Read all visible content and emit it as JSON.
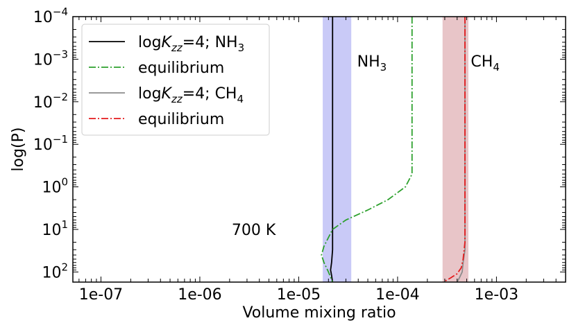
{
  "chart_data": {
    "type": "line",
    "xlabel": "Volume mixing ratio",
    "ylabel": "log(P)",
    "x_scale": "log",
    "y_scale": "log",
    "y_inverted": true,
    "xlim": [
      5.2e-08,
      0.005
    ],
    "ylim": [
      173,
      0.0001
    ],
    "x_ticks": [
      {
        "value": 1e-07,
        "label": "1e-07"
      },
      {
        "value": 1e-06,
        "label": "1e-06"
      },
      {
        "value": 1e-05,
        "label": "1e-05"
      },
      {
        "value": 0.0001,
        "label": "1e-04"
      },
      {
        "value": 0.001,
        "label": "1e-03"
      }
    ],
    "y_ticks": [
      {
        "value": 0.0001,
        "base": "10",
        "exp": "−4"
      },
      {
        "value": 0.001,
        "base": "10",
        "exp": "−3"
      },
      {
        "value": 0.01,
        "base": "10",
        "exp": "−2"
      },
      {
        "value": 0.1,
        "base": "10",
        "exp": "−1"
      },
      {
        "value": 1,
        "base": "10",
        "exp": "0"
      },
      {
        "value": 10,
        "base": "10",
        "exp": "1"
      },
      {
        "value": 100,
        "base": "10",
        "exp": "2"
      }
    ],
    "bands": [
      {
        "x": [
          1.75e-05,
          3.4e-05
        ],
        "color": "#c9caf7"
      },
      {
        "x": [
          0.000285,
          0.00052
        ],
        "color": "#e8c5c8"
      }
    ],
    "annotations": [
      {
        "text": "700 K",
        "x": 2.1e-06,
        "y": 10
      },
      {
        "text": "NH",
        "sub": "3",
        "x": 3.9e-05,
        "y": 0.0011
      },
      {
        "text": "CH",
        "sub": "4",
        "x": 0.00055,
        "y": 0.0011
      }
    ],
    "series": [
      {
        "legend": {
          "pre": "log",
          "italic": "K",
          "sub": "zz",
          "post": "=4; NH",
          "post_sub": "3"
        },
        "color": "#000000",
        "dash": "",
        "width": 1.8,
        "points": [
          [
            2.2e-05,
            0.0001
          ],
          [
            2.2e-05,
            30
          ],
          [
            2.15e-05,
            60
          ],
          [
            2.1e-05,
            90
          ],
          [
            2.15e-05,
            120
          ],
          [
            2.2e-05,
            173
          ]
        ]
      },
      {
        "legend": {
          "pre": "equilibrium"
        },
        "color": "#2ca02c",
        "dash": "10,3,2,3",
        "width": 1.8,
        "points": [
          [
            0.00014,
            0.0001
          ],
          [
            0.00014,
            0.5
          ],
          [
            0.00012,
            1.0
          ],
          [
            8e-05,
            2.0
          ],
          [
            5e-05,
            3.5
          ],
          [
            3e-05,
            6
          ],
          [
            2.2e-05,
            10
          ],
          [
            1.8e-05,
            25
          ],
          [
            1.7e-05,
            40
          ],
          [
            1.8e-05,
            60
          ],
          [
            2e-05,
            100
          ],
          [
            2.2e-05,
            173
          ]
        ]
      },
      {
        "legend": {
          "pre": "log",
          "italic": "K",
          "sub": "zz",
          "post": "=4; CH",
          "post_sub": "4"
        },
        "color": "#8c8c8c",
        "dash": "",
        "width": 1.8,
        "points": [
          [
            0.00048,
            0.0001
          ],
          [
            0.00048,
            30
          ],
          [
            0.00046,
            60
          ],
          [
            0.00045,
            100
          ],
          [
            0.00042,
            140
          ],
          [
            0.0004,
            173
          ]
        ]
      },
      {
        "legend": {
          "pre": "equilibrium"
        },
        "color": "#e41a1c",
        "dash": "10,3,2,3",
        "width": 1.8,
        "points": [
          [
            0.00048,
            0.0001
          ],
          [
            0.00048,
            20
          ],
          [
            0.00046,
            50
          ],
          [
            0.00044,
            80
          ],
          [
            0.0004,
            110
          ],
          [
            0.00034,
            140
          ],
          [
            0.00029,
            173
          ]
        ]
      }
    ]
  }
}
